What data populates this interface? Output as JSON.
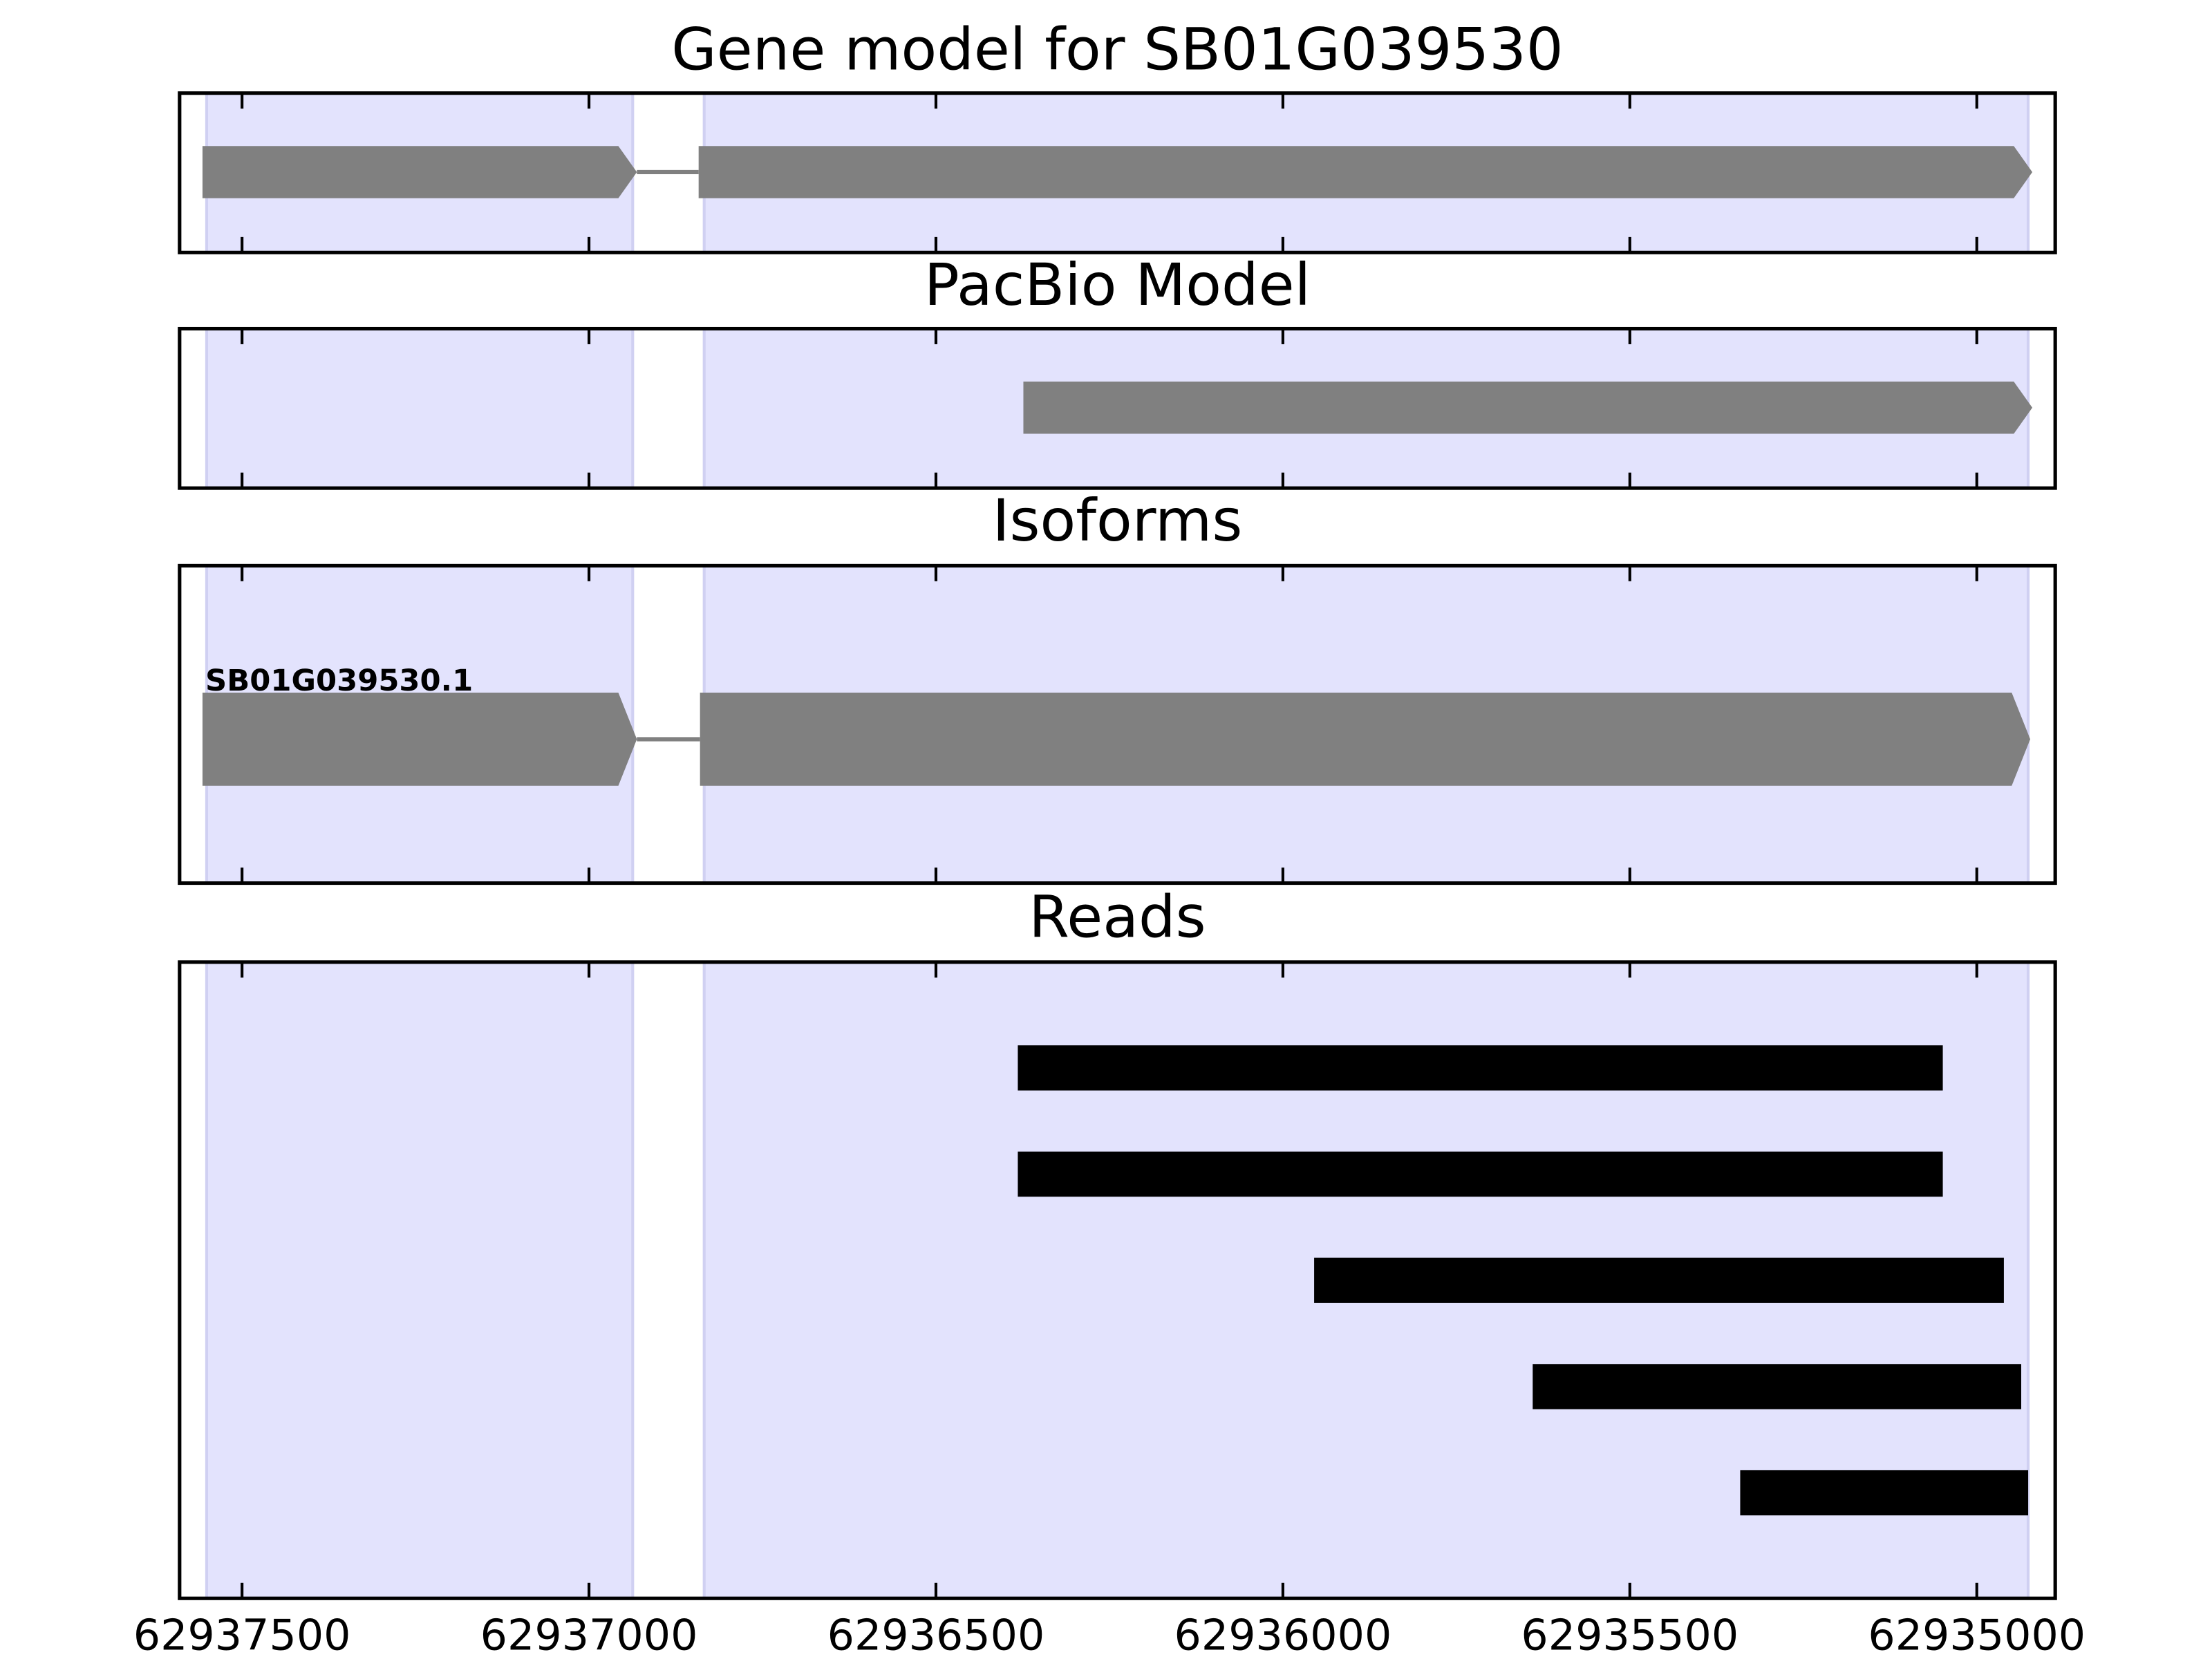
{
  "chart_data": [
    {
      "type": "gene_model",
      "title": "Gene model for SB01G039530",
      "xlim": [
        62937590,
        62934887
      ],
      "xticks": [
        62937500,
        62937000,
        62936500,
        62936000,
        62935500,
        62935000
      ],
      "regions": [
        [
          62937551,
          62936937
        ],
        [
          62936834,
          62934926
        ]
      ],
      "region_color": "#e3e3fd",
      "color": "#808080",
      "exons": [
        [
          62937557,
          62936931
        ],
        [
          62936842,
          62934920
        ]
      ]
    },
    {
      "type": "gene_model",
      "title": "PacBio Model",
      "xlim": [
        62937590,
        62934887
      ],
      "xticks": [
        62937500,
        62937000,
        62936500,
        62936000,
        62935500,
        62935000
      ],
      "regions": [
        [
          62937551,
          62936937
        ],
        [
          62936834,
          62934926
        ]
      ],
      "region_color": "#e3e3fd",
      "color": "#808080",
      "exons": [
        [
          62936374,
          62934920
        ]
      ]
    },
    {
      "type": "isoforms",
      "title": "Isoforms",
      "xlim": [
        62937590,
        62934887
      ],
      "xticks": [
        62937500,
        62937000,
        62936500,
        62936000,
        62935500,
        62935000
      ],
      "regions": [
        [
          62937551,
          62936937
        ],
        [
          62936834,
          62934926
        ]
      ],
      "region_color": "#e3e3fd",
      "color": "#808080",
      "isoforms": [
        {
          "name": "SB01G039530.1",
          "exons": [
            [
              62937557,
              62936931
            ],
            [
              62936840,
              62934923
            ]
          ]
        }
      ]
    },
    {
      "type": "reads",
      "title": "Reads",
      "xlim": [
        62937590,
        62934887
      ],
      "xticks": [
        62937500,
        62937000,
        62936500,
        62936000,
        62935500,
        62935000
      ],
      "regions": [
        [
          62937551,
          62936937
        ],
        [
          62936834,
          62934926
        ]
      ],
      "region_color": "#e3e3fd",
      "color": "#000000",
      "tick_labels": true,
      "reads": [
        [
          62936382,
          62935049
        ],
        [
          62936382,
          62935049
        ],
        [
          62935955,
          62934961
        ],
        [
          62935640,
          62934936
        ],
        [
          62935341,
          62934926
        ]
      ]
    }
  ]
}
